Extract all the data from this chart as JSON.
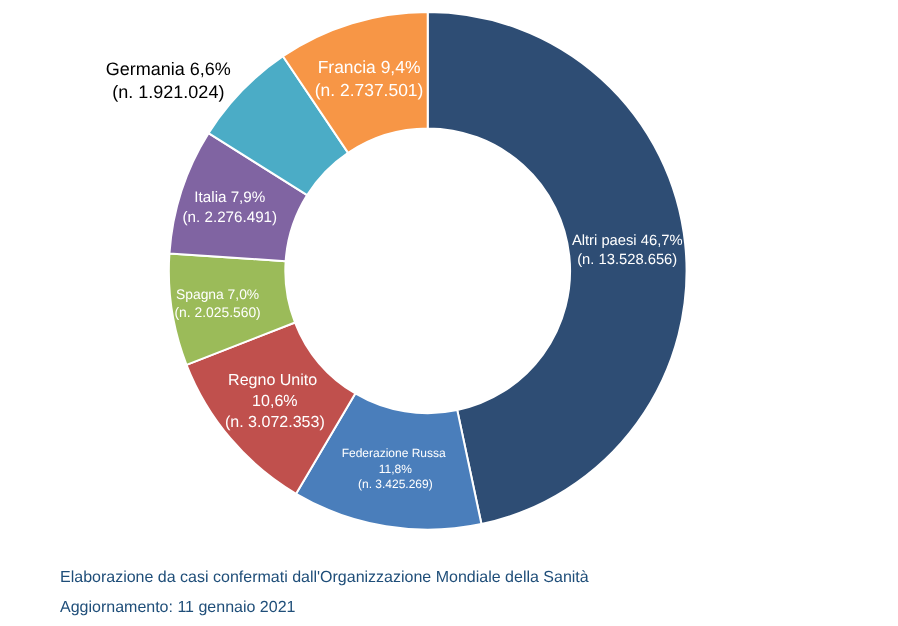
{
  "chart_data": {
    "type": "donut",
    "categories": [
      "Altri paesi",
      "Federazione Russa",
      "Regno Unito",
      "Spagna",
      "Italia",
      "Germania",
      "Francia"
    ],
    "values": [
      13528656,
      3425269,
      3072353,
      2025560,
      2276491,
      1921024,
      2737501
    ],
    "value_labels": [
      "46,7%\n(n. 13.528.656)",
      "\n11,8%\n(n. 3.425.269)",
      "\n10,6%\n(n. 3.072.353)",
      "7,0%\n(n. 2.025.560)",
      "7,9%\n(n. 2.276.491)",
      "6,6%\n(n. 1.921.024)",
      "9,4%\n(n. 2.737.501)"
    ],
    "colors": [
      "#2e4d74",
      "#4a7ebb",
      "#c0504d",
      "#9bbb59",
      "#8064a2",
      "#4bacc6",
      "#f79646"
    ],
    "annotations": [
      "Elaborazione da casi confermati dall'Organizzazione Mondiale della Sanità",
      "Aggiornamento: 11 gennaio 2021"
    ],
    "legend": false
  }
}
